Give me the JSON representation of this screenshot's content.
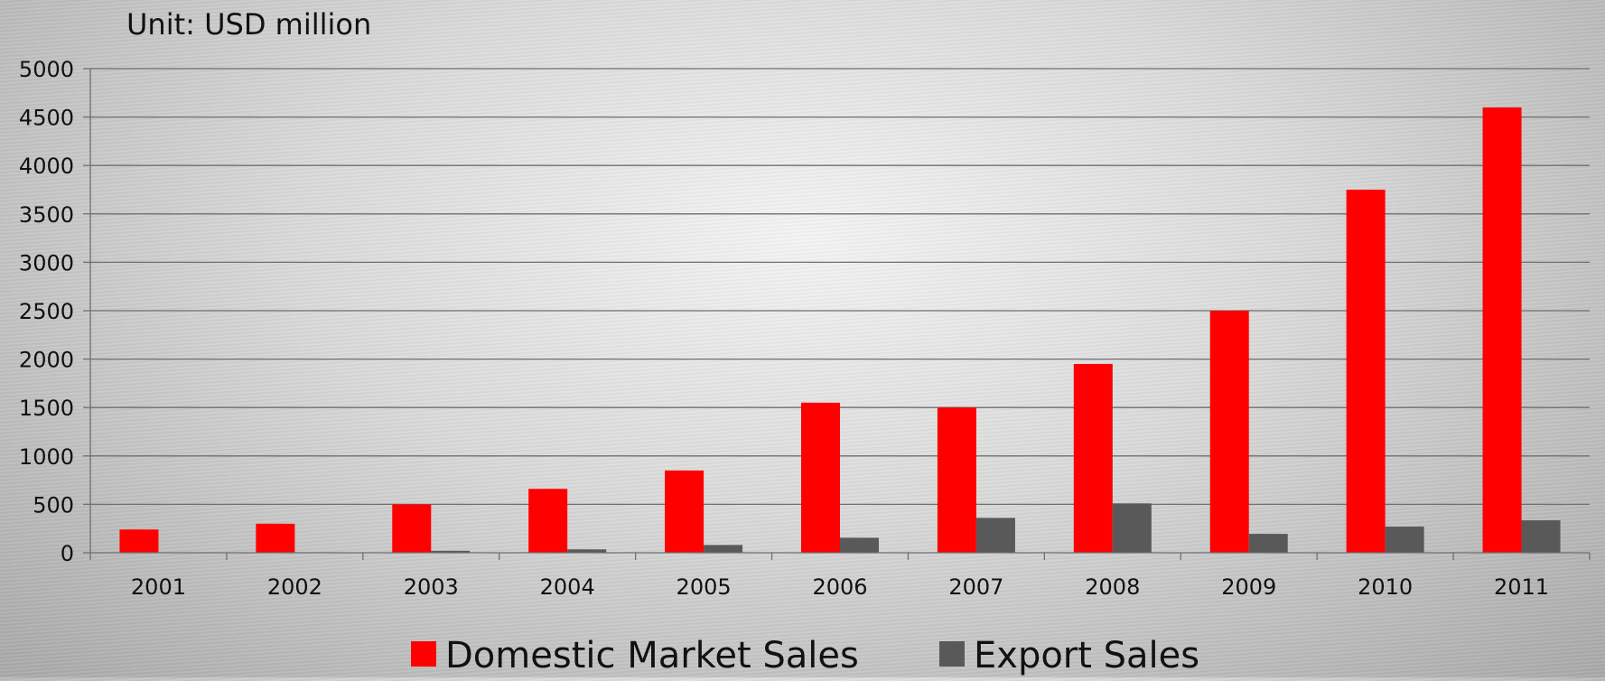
{
  "chart_data": {
    "type": "bar",
    "unit_label": "Unit: USD million",
    "categories": [
      "2001",
      "2002",
      "2003",
      "2004",
      "2005",
      "2006",
      "2007",
      "2008",
      "2009",
      "2010",
      "2011"
    ],
    "series": [
      {
        "name": "Domestic Market Sales",
        "color": "#ff0000",
        "values": [
          240,
          300,
          500,
          660,
          850,
          1550,
          1500,
          1950,
          2500,
          3750,
          4600
        ]
      },
      {
        "name": "Export Sales",
        "color": "#595959",
        "values": [
          0,
          5,
          20,
          35,
          80,
          155,
          360,
          510,
          195,
          270,
          335
        ]
      }
    ],
    "ylim": [
      0,
      5000
    ],
    "yticks": [
      0,
      500,
      1000,
      1500,
      2000,
      2500,
      3000,
      3500,
      4000,
      4500,
      5000
    ],
    "grid": true,
    "legend_position": "bottom"
  }
}
